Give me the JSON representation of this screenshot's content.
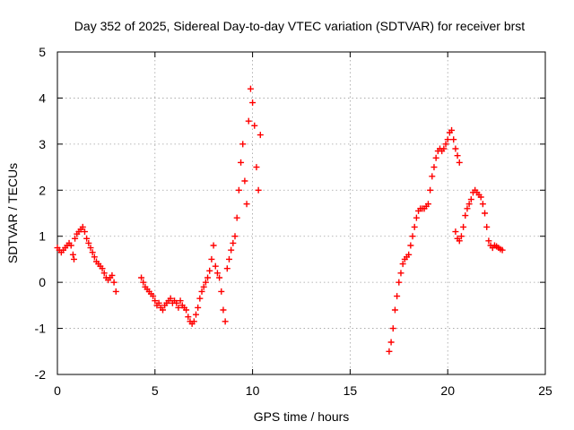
{
  "chart_data": {
    "type": "scatter",
    "title": "Day 352 of 2025, Sidereal Day-to-day VTEC variation (SDTVAR) for receiver brst",
    "xlabel": "GPS time / hours",
    "ylabel": "SDTVAR / TECUs",
    "xlim": [
      0,
      25
    ],
    "ylim": [
      -2,
      5
    ],
    "xticks": [
      "0",
      "5",
      "10",
      "15",
      "20",
      "25"
    ],
    "yticks": [
      "-2",
      "-1",
      "0",
      "1",
      "2",
      "3",
      "4",
      "5"
    ],
    "grid": true,
    "marker": "plus",
    "color": "#ff0000",
    "series": [
      {
        "name": "SDTVAR",
        "x": [
          0.0,
          0.1,
          0.2,
          0.3,
          0.4,
          0.5,
          0.6,
          0.7,
          0.8,
          0.85,
          0.9,
          1.0,
          1.1,
          1.2,
          1.3,
          1.4,
          1.5,
          1.6,
          1.7,
          1.8,
          1.9,
          2.0,
          2.1,
          2.2,
          2.3,
          2.4,
          2.5,
          2.6,
          2.7,
          2.8,
          2.9,
          3.0,
          4.3,
          4.4,
          4.5,
          4.6,
          4.7,
          4.8,
          4.9,
          5.0,
          5.1,
          5.2,
          5.3,
          5.4,
          5.5,
          5.6,
          5.7,
          5.8,
          5.9,
          6.0,
          6.1,
          6.2,
          6.3,
          6.4,
          6.5,
          6.6,
          6.7,
          6.8,
          6.9,
          7.0,
          7.1,
          7.2,
          7.3,
          7.4,
          7.5,
          7.6,
          7.7,
          7.8,
          7.9,
          8.0,
          8.1,
          8.2,
          8.3,
          8.4,
          8.5,
          8.6,
          8.7,
          8.8,
          8.9,
          9.0,
          9.1,
          9.2,
          9.3,
          9.4,
          9.5,
          9.6,
          9.7,
          9.8,
          9.9,
          10.0,
          10.1,
          10.2,
          10.3,
          10.4,
          17.0,
          17.1,
          17.2,
          17.3,
          17.4,
          17.5,
          17.6,
          17.7,
          17.8,
          17.9,
          18.0,
          18.1,
          18.2,
          18.3,
          18.4,
          18.5,
          18.6,
          18.7,
          18.8,
          18.9,
          19.0,
          19.1,
          19.2,
          19.3,
          19.4,
          19.5,
          19.6,
          19.7,
          19.8,
          19.9,
          20.0,
          20.1,
          20.2,
          20.3,
          20.4,
          20.5,
          20.6,
          20.4,
          20.5,
          20.6,
          20.7,
          20.8,
          20.9,
          21.0,
          21.1,
          21.2,
          21.3,
          21.4,
          21.5,
          21.6,
          21.7,
          21.8,
          21.9,
          22.0,
          22.1,
          22.2,
          22.3,
          22.4,
          22.5,
          22.6,
          22.7,
          22.8
        ],
        "y": [
          0.75,
          0.7,
          0.65,
          0.7,
          0.75,
          0.8,
          0.85,
          0.8,
          0.6,
          0.5,
          0.95,
          1.05,
          1.1,
          1.15,
          1.2,
          1.1,
          0.95,
          0.85,
          0.75,
          0.65,
          0.55,
          0.45,
          0.4,
          0.35,
          0.3,
          0.2,
          0.1,
          0.05,
          0.1,
          0.15,
          0.0,
          -0.2,
          0.1,
          0.0,
          -0.1,
          -0.15,
          -0.2,
          -0.25,
          -0.3,
          -0.4,
          -0.5,
          -0.45,
          -0.55,
          -0.6,
          -0.5,
          -0.45,
          -0.4,
          -0.35,
          -0.45,
          -0.4,
          -0.45,
          -0.55,
          -0.4,
          -0.5,
          -0.55,
          -0.6,
          -0.75,
          -0.85,
          -0.9,
          -0.85,
          -0.7,
          -0.55,
          -0.35,
          -0.2,
          -0.1,
          0.0,
          0.1,
          0.25,
          0.5,
          0.8,
          0.35,
          0.2,
          0.1,
          -0.2,
          -0.6,
          -0.85,
          0.3,
          0.5,
          0.7,
          0.85,
          1.0,
          1.4,
          2.0,
          2.6,
          3.0,
          2.2,
          1.7,
          3.5,
          4.2,
          3.9,
          3.4,
          2.5,
          2.0,
          3.2,
          -1.5,
          -1.3,
          -1.0,
          -0.6,
          -0.3,
          0.0,
          0.2,
          0.4,
          0.5,
          0.55,
          0.6,
          0.8,
          1.0,
          1.2,
          1.4,
          1.55,
          1.6,
          1.6,
          1.6,
          1.65,
          1.7,
          2.0,
          2.3,
          2.5,
          2.7,
          2.85,
          2.9,
          2.85,
          2.9,
          3.0,
          3.1,
          3.25,
          3.3,
          3.1,
          2.9,
          2.75,
          2.6,
          1.1,
          0.95,
          0.9,
          1.0,
          1.2,
          1.45,
          1.6,
          1.7,
          1.8,
          1.95,
          2.0,
          1.95,
          1.9,
          1.85,
          1.7,
          1.5,
          1.2,
          0.9,
          0.8,
          0.75,
          0.8,
          0.78,
          0.75,
          0.72,
          0.7
        ]
      }
    ]
  }
}
